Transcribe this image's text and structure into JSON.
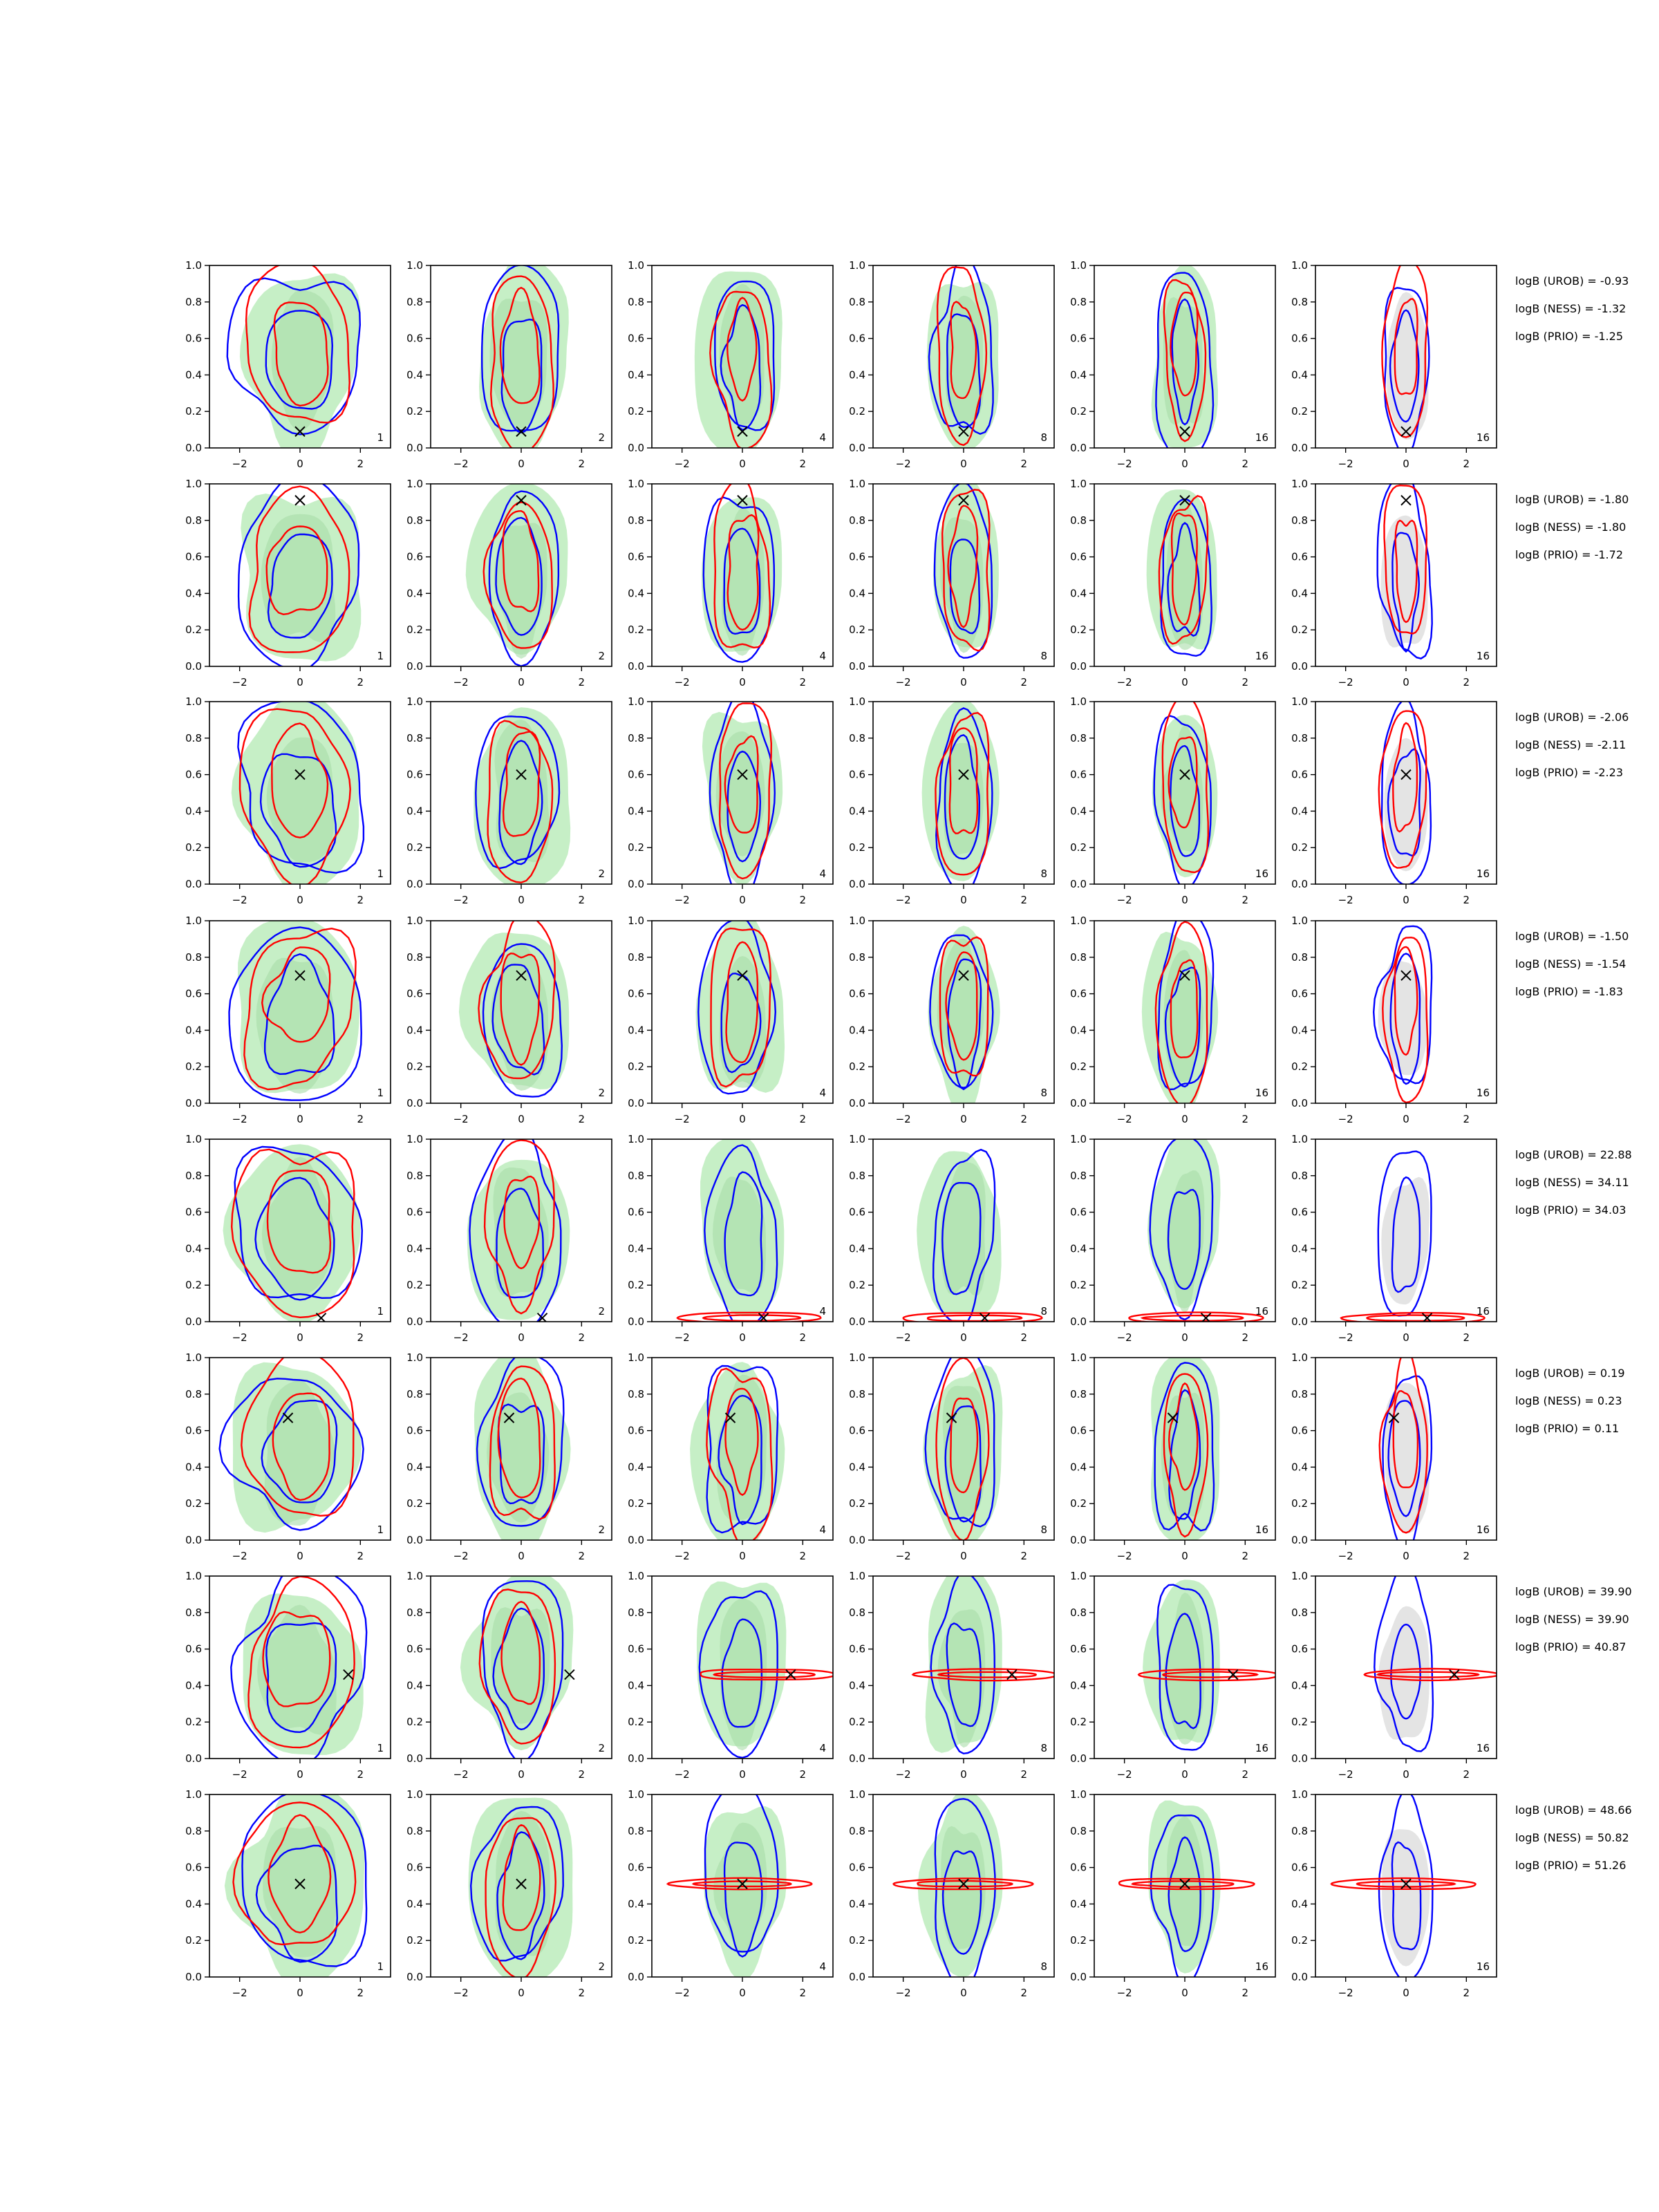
{
  "chart_data": {
    "type": "contour-grid",
    "title": "",
    "xlim": [
      -3,
      3
    ],
    "ylim": [
      0,
      1
    ],
    "xticks": [
      -2,
      0,
      2
    ],
    "yticks": [
      0.0,
      0.2,
      0.4,
      0.6,
      0.8,
      1.0
    ],
    "xtick_labels": [
      "−2",
      "0",
      "2"
    ],
    "ytick_labels": [
      "0.0",
      "0.2",
      "0.4",
      "0.6",
      "0.8",
      "1.0"
    ],
    "column_labels": [
      "1",
      "2",
      "4",
      "8",
      "16",
      "16"
    ],
    "colors": {
      "red_contour": "#ff0000",
      "blue_contour": "#0000ff",
      "green_fill_outer": "#c6efc6",
      "green_fill_inner": "#a9dca9",
      "grey_fill": "#e4e4e4",
      "marker": "#000000"
    },
    "rows": [
      {
        "marker": [
          0.0,
          0.09
        ],
        "logB": {
          "UROB": "-0.93",
          "NESS": "-1.32",
          "PRIO": "-1.25"
        }
      },
      {
        "marker": [
          0.0,
          0.91
        ],
        "logB": {
          "UROB": "-1.80",
          "NESS": "-1.80",
          "PRIO": "-1.72"
        }
      },
      {
        "marker": [
          0.0,
          0.6
        ],
        "logB": {
          "UROB": "-2.06",
          "NESS": "-2.11",
          "PRIO": "-2.23"
        }
      },
      {
        "marker": [
          0.0,
          0.7
        ],
        "logB": {
          "UROB": "-1.50",
          "NESS": "-1.54",
          "PRIO": "-1.83"
        }
      },
      {
        "marker": [
          0.7,
          0.02
        ],
        "logB": {
          "UROB": "22.88",
          "NESS": "34.11",
          "PRIO": "34.03"
        }
      },
      {
        "marker": [
          -0.4,
          0.67
        ],
        "logB": {
          "UROB": "0.19",
          "NESS": "0.23",
          "PRIO": "0.11"
        }
      },
      {
        "marker": [
          1.6,
          0.46
        ],
        "logB": {
          "UROB": "39.90",
          "NESS": "39.90",
          "PRIO": "40.87"
        }
      },
      {
        "marker": [
          0.0,
          0.51
        ],
        "logB": {
          "UROB": "48.66",
          "NESS": "50.82",
          "PRIO": "51.26"
        }
      }
    ],
    "legend_prefix": {
      "UROB": "logB (UROB) = ",
      "NESS": "logB (NESS) = ",
      "PRIO": "logB (PRIO) = "
    }
  }
}
